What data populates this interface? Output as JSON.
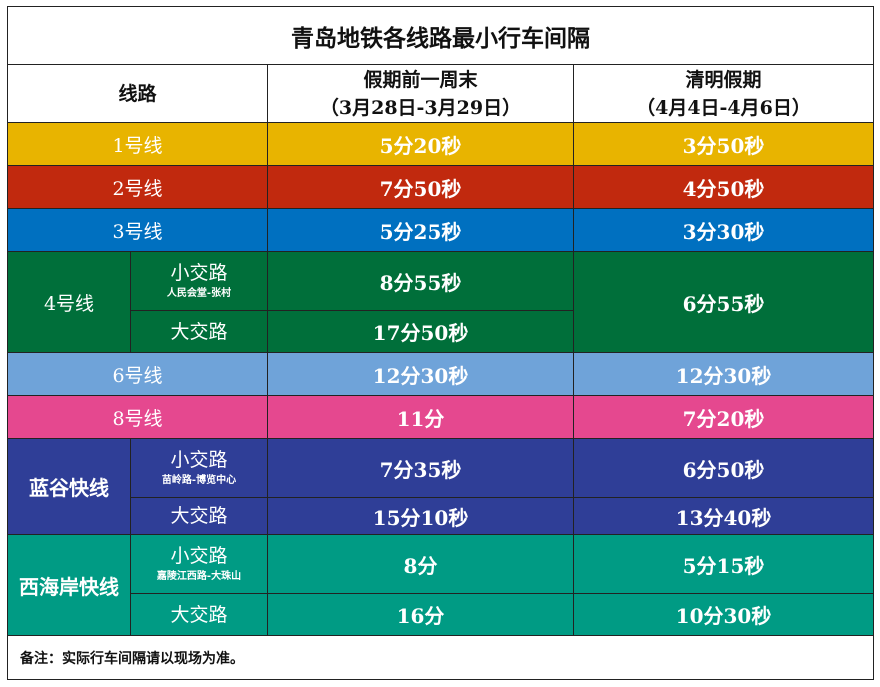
{
  "title": "青岛地铁各线路最小行车间隔",
  "header": {
    "line": "线路",
    "col1_title": "假期前一周末",
    "col1_dates": "（3月28日-3月29日）",
    "col2_title": "清明假期",
    "col2_dates": "（4月4日-4月6日）"
  },
  "colors": {
    "line1": "#E8B400",
    "line2": "#C1290E",
    "line3": "#0070C0",
    "line4": "#006F3A",
    "line6": "#6FA3D9",
    "line8": "#E5488F",
    "langu": "#2F3E97",
    "xihaian": "#009B84"
  },
  "rows": {
    "l1": {
      "name": "1号线",
      "weekend": "5分20秒",
      "qingming": "3分50秒"
    },
    "l2": {
      "name": "2号线",
      "weekend": "7分50秒",
      "qingming": "4分50秒"
    },
    "l3": {
      "name": "3号线",
      "weekend": "5分25秒",
      "qingming": "3分30秒"
    },
    "l4": {
      "name": "4号线",
      "small": "小交路",
      "small_route": "人民会堂-张村",
      "small_weekend": "8分55秒",
      "big": "大交路",
      "big_weekend": "17分50秒",
      "qingming": "6分55秒"
    },
    "l6": {
      "name": "6号线",
      "weekend": "12分30秒",
      "qingming": "12分30秒"
    },
    "l8": {
      "name": "8号线",
      "weekend": "11分",
      "qingming": "7分20秒"
    },
    "langu": {
      "name": "蓝谷快线",
      "small": "小交路",
      "small_route": "苗岭路-博览中心",
      "small_weekend": "7分35秒",
      "small_qingming": "6分50秒",
      "big": "大交路",
      "big_weekend": "15分10秒",
      "big_qingming": "13分40秒"
    },
    "xihaian": {
      "name": "西海岸快线",
      "small": "小交路",
      "small_route": "嘉陵江西路-大珠山",
      "small_weekend": "8分",
      "small_qingming": "5分15秒",
      "big": "大交路",
      "big_weekend": "16分",
      "big_qingming": "10分30秒"
    }
  },
  "note": "备注：实际行车间隔请以现场为准。"
}
